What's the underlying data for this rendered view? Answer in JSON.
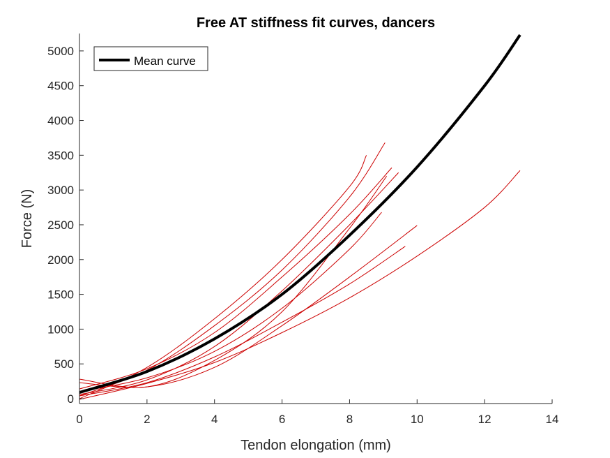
{
  "chart_data": {
    "type": "line",
    "title": "Free AT stiffness fit curves, dancers",
    "xlabel": "Tendon elongation (mm)",
    "ylabel": "Force (N)",
    "xlim": [
      0,
      14
    ],
    "ylim": [
      -70,
      5250
    ],
    "xticks": [
      "0",
      "2",
      "4",
      "6",
      "8",
      "10",
      "12",
      "14"
    ],
    "yticks": [
      "0",
      "500",
      "1000",
      "1500",
      "2000",
      "2500",
      "3000",
      "3500",
      "4000",
      "4500",
      "5000"
    ],
    "grid": false,
    "legend": {
      "position": "top-left",
      "entries": [
        "Mean curve"
      ]
    },
    "mean_curve": {
      "name": "Mean curve",
      "color": "#000000",
      "x": [
        0,
        2,
        4,
        6,
        8,
        10,
        12,
        13.05
      ],
      "y": [
        90,
        390,
        860,
        1500,
        2350,
        3330,
        4500,
        5230
      ]
    },
    "individual_curves": {
      "color": "#cc0000",
      "series": [
        {
          "x": [
            0,
            2,
            4,
            6,
            8,
            8.5
          ],
          "y": [
            0,
            450,
            1150,
            2000,
            3050,
            3500
          ]
        },
        {
          "x": [
            0,
            2,
            4,
            6,
            8,
            9.05
          ],
          "y": [
            40,
            410,
            1050,
            1850,
            2900,
            3680
          ]
        },
        {
          "x": [
            0,
            2,
            4,
            6,
            8,
            9.25
          ],
          "y": [
            140,
            430,
            950,
            1750,
            2650,
            3320
          ]
        },
        {
          "x": [
            0,
            2,
            4,
            6,
            8,
            9.45
          ],
          "y": [
            60,
            270,
            750,
            1550,
            2500,
            3250
          ]
        },
        {
          "x": [
            0,
            2,
            4,
            6,
            8,
            9.1
          ],
          "y": [
            280,
            170,
            550,
            1250,
            2450,
            3200
          ]
        },
        {
          "x": [
            0,
            2,
            4,
            6,
            8,
            8.95
          ],
          "y": [
            100,
            300,
            680,
            1300,
            2150,
            2680
          ]
        },
        {
          "x": [
            0,
            2,
            4,
            6,
            8,
            10
          ],
          "y": [
            230,
            170,
            450,
            1050,
            1750,
            2490
          ]
        },
        {
          "x": [
            0,
            2,
            4,
            6,
            8,
            9.65
          ],
          "y": [
            40,
            230,
            600,
            1100,
            1650,
            2190
          ]
        },
        {
          "x": [
            0,
            2,
            4,
            6,
            8,
            10,
            12,
            13.05
          ],
          "y": [
            -10,
            220,
            520,
            950,
            1450,
            2050,
            2750,
            3280
          ]
        }
      ]
    }
  }
}
